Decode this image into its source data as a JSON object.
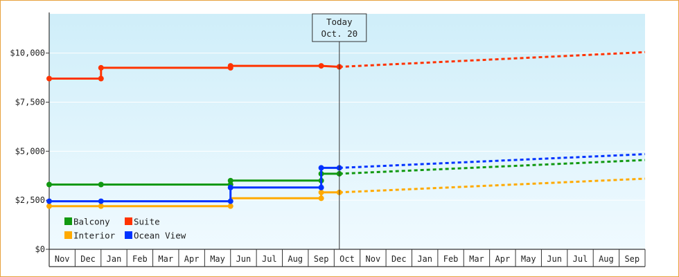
{
  "chart_data": {
    "type": "line",
    "title": "",
    "xlabel": "",
    "ylabel": "",
    "ylim": [
      0,
      12000
    ],
    "y_ticks": [
      0,
      2500,
      5000,
      7500,
      10000
    ],
    "y_tick_labels": [
      "$0",
      "$2,500",
      "$5,000",
      "$7,500",
      "$10,000"
    ],
    "x_tick_labels": [
      "Nov",
      "Dec",
      "Jan",
      "Feb",
      "Mar",
      "Apr",
      "May",
      "Jun",
      "Jul",
      "Aug",
      "Sep",
      "Oct",
      "Nov",
      "Dec",
      "Jan",
      "Feb",
      "Mar",
      "Apr",
      "May",
      "Jun",
      "Jul",
      "Aug",
      "Sep"
    ],
    "today": {
      "line1": "Today",
      "line2": "Oct. 20",
      "x": 11.2
    },
    "legend_position": "bottom-left",
    "colors": {
      "Balcony": "#119911",
      "Suite": "#ff3300",
      "Interior": "#ffaa00",
      "Ocean View": "#0033ff",
      "background_top": "#cfeef9",
      "background_bottom": "#f0faff",
      "frame": "#e8a23c"
    },
    "series": [
      {
        "name": "Balcony",
        "values": [
          [
            0,
            3300
          ],
          [
            2,
            3300
          ],
          [
            7,
            3300
          ],
          [
            7,
            3500
          ],
          [
            10.5,
            3500
          ],
          [
            10.5,
            3850
          ],
          [
            11.2,
            3850
          ]
        ],
        "markers": [
          [
            0,
            3300
          ],
          [
            2,
            3300
          ],
          [
            7,
            3300
          ],
          [
            7,
            3500
          ],
          [
            10.5,
            3500
          ],
          [
            10.5,
            3850
          ],
          [
            11.2,
            3850
          ]
        ],
        "forecast": [
          [
            11.2,
            3850
          ],
          [
            23,
            4550
          ]
        ]
      },
      {
        "name": "Suite",
        "values": [
          [
            0,
            8700
          ],
          [
            2,
            8700
          ],
          [
            2,
            9250
          ],
          [
            7,
            9250
          ],
          [
            7,
            9350
          ],
          [
            10.5,
            9350
          ],
          [
            11.2,
            9300
          ]
        ],
        "markers": [
          [
            0,
            8700
          ],
          [
            2,
            8700
          ],
          [
            2,
            9250
          ],
          [
            7,
            9250
          ],
          [
            7,
            9350
          ],
          [
            10.5,
            9350
          ],
          [
            11.2,
            9300
          ]
        ],
        "forecast": [
          [
            11.2,
            9300
          ],
          [
            23,
            10050
          ]
        ]
      },
      {
        "name": "Interior",
        "values": [
          [
            0,
            2200
          ],
          [
            2,
            2200
          ],
          [
            7,
            2200
          ],
          [
            7,
            2600
          ],
          [
            10.5,
            2600
          ],
          [
            10.5,
            2900
          ],
          [
            11.2,
            2900
          ]
        ],
        "markers": [
          [
            0,
            2200
          ],
          [
            2,
            2200
          ],
          [
            7,
            2200
          ],
          [
            10.5,
            2600
          ],
          [
            10.5,
            2900
          ],
          [
            11.2,
            2900
          ]
        ],
        "forecast": [
          [
            11.2,
            2900
          ],
          [
            23,
            3600
          ]
        ]
      },
      {
        "name": "Ocean View",
        "values": [
          [
            0,
            2450
          ],
          [
            2,
            2450
          ],
          [
            7,
            2450
          ],
          [
            7,
            3150
          ],
          [
            10.5,
            3150
          ],
          [
            10.5,
            4150
          ],
          [
            11.2,
            4150
          ]
        ],
        "markers": [
          [
            0,
            2450
          ],
          [
            2,
            2450
          ],
          [
            7,
            2450
          ],
          [
            7,
            3150
          ],
          [
            10.5,
            3150
          ],
          [
            10.5,
            4150
          ],
          [
            11.2,
            4150
          ]
        ],
        "forecast": [
          [
            11.2,
            4150
          ],
          [
            23,
            4850
          ]
        ]
      }
    ]
  }
}
